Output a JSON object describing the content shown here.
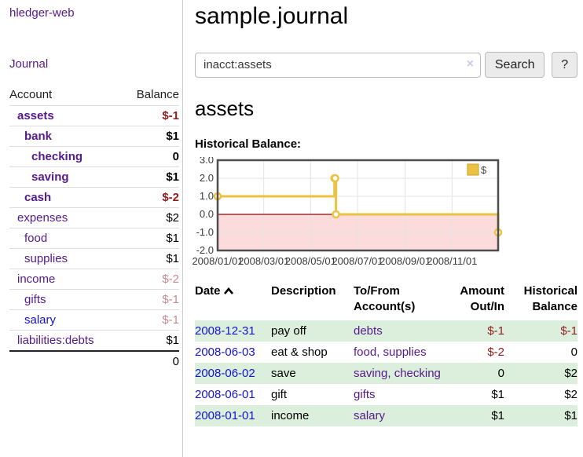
{
  "colors": {
    "accent_purple": "#551a8b",
    "link_blue": "#1414cd",
    "negative_red": "#8f1d1d",
    "faded_negative": "#c9898e",
    "row_stripe_green": "#dcefdc",
    "series_yellow": "#edc240",
    "negative_region_pink": "#fbdbdb",
    "zero_line_red": "#8c0606"
  },
  "sidebar": {
    "brand": "hledger-web",
    "journal_link": "Journal",
    "accounts": {
      "header_account": "Account",
      "header_balance": "Balance",
      "rows": [
        {
          "name": "assets",
          "indent": 0,
          "bold": true,
          "color": "purple",
          "balance": "$-1",
          "balance_class": "neg bold"
        },
        {
          "name": "bank",
          "indent": 1,
          "bold": true,
          "color": "purple",
          "balance": "$1",
          "balance_class": "bold"
        },
        {
          "name": "checking",
          "indent": 2,
          "bold": true,
          "color": "purple",
          "balance": "0",
          "balance_class": "bold"
        },
        {
          "name": "saving",
          "indent": 2,
          "bold": true,
          "color": "purple",
          "balance": "$1",
          "balance_class": "bold"
        },
        {
          "name": "cash",
          "indent": 1,
          "bold": true,
          "color": "purple",
          "balance": "$-2",
          "balance_class": "neg bold"
        },
        {
          "name": "expenses",
          "indent": 0,
          "bold": false,
          "color": "purple",
          "balance": "$2",
          "balance_class": ""
        },
        {
          "name": "food",
          "indent": 1,
          "bold": false,
          "color": "purple",
          "balance": "$1",
          "balance_class": ""
        },
        {
          "name": "supplies",
          "indent": 1,
          "bold": false,
          "color": "purple",
          "balance": "$1",
          "balance_class": ""
        },
        {
          "name": "income",
          "indent": 0,
          "bold": false,
          "color": "purple",
          "balance": "$-2",
          "balance_class": "faded"
        },
        {
          "name": "gifts",
          "indent": 1,
          "bold": false,
          "color": "purple",
          "balance": "$-1",
          "balance_class": "faded"
        },
        {
          "name": "salary",
          "indent": 1,
          "bold": false,
          "color": "blue",
          "balance": "$-1",
          "balance_class": "faded"
        },
        {
          "name": "liabilities:debts",
          "indent": 0,
          "bold": false,
          "color": "purple",
          "balance": "$1",
          "balance_class": ""
        }
      ],
      "total": "0"
    }
  },
  "main": {
    "title": "sample.journal",
    "search": {
      "value": "inacct:assets",
      "clear": "×",
      "search_button": "Search",
      "help_button": "?"
    },
    "account_heading": "assets",
    "section_label": "Historical Balance:"
  },
  "chart_data": {
    "type": "line",
    "title": "Historical Balance",
    "step": true,
    "series": [
      {
        "name": "$",
        "color": "#edc240",
        "points": [
          [
            "2008-01-01",
            1
          ],
          [
            "2008-06-01",
            2
          ],
          [
            "2008-06-02",
            2
          ],
          [
            "2008-06-03",
            0
          ],
          [
            "2008-12-31",
            -1
          ]
        ]
      }
    ],
    "x_range": [
      "2008-01-01",
      "2008-12-31"
    ],
    "ylim": [
      -2,
      3
    ],
    "y_ticks": [
      {
        "v": 3,
        "label": "3.0"
      },
      {
        "v": 2,
        "label": "2.0"
      },
      {
        "v": 1,
        "label": "1.0"
      },
      {
        "v": 0,
        "label": "0.0"
      },
      {
        "v": -1,
        "label": "-1.0"
      },
      {
        "v": -2,
        "label": "-2.0"
      }
    ],
    "x_ticks": [
      {
        "d": "2008-01-01",
        "label": "2008/01/01"
      },
      {
        "d": "2008-03-01",
        "label": "2008/03/01"
      },
      {
        "d": "2008-05-01",
        "label": "2008/05/01"
      },
      {
        "d": "2008-07-01",
        "label": "2008/07/01"
      },
      {
        "d": "2008-09-01",
        "label": "2008/09/01"
      },
      {
        "d": "2008-11-01",
        "label": "2008/11/01"
      }
    ],
    "grid": true,
    "legend": {
      "label": "$",
      "position": "top-right"
    },
    "negative_region_shaded": true
  },
  "register": {
    "headers": {
      "date": "Date",
      "description": "Description",
      "account": "To/From\nAccount(s)",
      "amount": "Amount\nOut/In",
      "balance": "Historical\nBalance"
    },
    "sort": {
      "column": "date",
      "direction": "ascending"
    },
    "rows": [
      {
        "date": "2008-12-31",
        "description": "pay off",
        "accounts": "debts",
        "amount": "$-1",
        "balance": "$-1"
      },
      {
        "date": "2008-06-03",
        "description": "eat & shop",
        "accounts": "food, supplies",
        "amount": "$-2",
        "balance": "0"
      },
      {
        "date": "2008-06-02",
        "description": "save",
        "accounts": "saving, checking",
        "amount": "0",
        "balance": "$2"
      },
      {
        "date": "2008-06-01",
        "description": "gift",
        "accounts": "gifts",
        "amount": "$1",
        "balance": "$2"
      },
      {
        "date": "2008-01-01",
        "description": "income",
        "accounts": "salary",
        "amount": "$1",
        "balance": "$1"
      }
    ]
  }
}
